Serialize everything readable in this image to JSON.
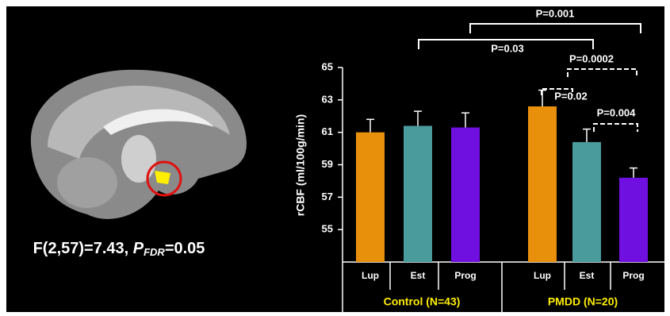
{
  "figure_caption": {
    "prefix": "F(2,57)=7.43, ",
    "p": "P",
    "sub": "FDR",
    "suffix": "=0.05"
  },
  "chart_data": {
    "type": "bar",
    "y_label": "rCBF  (ml/100g/min)",
    "categories": [
      "Lup",
      "Est",
      "Prog",
      "Lup",
      "Est",
      "Prog"
    ],
    "groups": [
      "Control (N=43)",
      "PMDD (N=20)"
    ],
    "values": [
      61.0,
      61.4,
      61.3,
      62.6,
      60.4,
      58.2
    ],
    "errors": [
      0.8,
      0.9,
      0.9,
      1.0,
      0.8,
      0.6
    ],
    "colors": [
      "#e8900c",
      "#4a9b9b",
      "#7010e0",
      "#e8900c",
      "#4a9b9b",
      "#7010e0"
    ],
    "ylim": [
      53,
      65
    ],
    "yticks": [
      55,
      57,
      59,
      61,
      63,
      65
    ],
    "annotations": [
      "P=0.001",
      "P=0.03",
      "P=0.0002",
      "P=0.02",
      "P=0.004"
    ]
  }
}
